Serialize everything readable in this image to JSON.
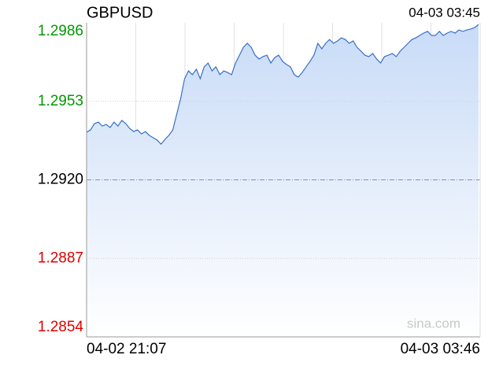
{
  "chart_data": {
    "type": "area",
    "title": "GBPUSD",
    "last_time": "04-03 03:45",
    "watermark": "sina.com",
    "x_labels": [
      "04-02 21:07",
      "04-03 03:46"
    ],
    "color": "#3a6fc4",
    "fill": "#c8dbf7",
    "grid": true,
    "ylim": [
      1.2854,
      1.2986
    ],
    "yticks": [
      {
        "value": 1.2854,
        "label": "1.2854",
        "color": "#e00000"
      },
      {
        "value": 1.2887,
        "label": "1.2887",
        "color": "#e00000"
      },
      {
        "value": 1.292,
        "label": "1.2920",
        "color": "#000000"
      },
      {
        "value": 1.2953,
        "label": "1.2953",
        "color": "#009900"
      },
      {
        "value": 1.2986,
        "label": "1.2986",
        "color": "#009900"
      }
    ],
    "values": [
      1.294,
      1.2941,
      1.29436,
      1.29443,
      1.29426,
      1.29433,
      1.2942,
      1.29443,
      1.29426,
      1.2945,
      1.29436,
      1.29416,
      1.29403,
      1.2941,
      1.29393,
      1.29403,
      1.29387,
      1.29377,
      1.29367,
      1.2935,
      1.2937,
      1.29387,
      1.2941,
      1.29476,
      1.29542,
      1.29625,
      1.29658,
      1.29642,
      1.29665,
      1.29625,
      1.29675,
      1.29691,
      1.29658,
      1.29675,
      1.29642,
      1.29658,
      1.29651,
      1.29642,
      1.29691,
      1.29724,
      1.29757,
      1.29774,
      1.29757,
      1.29724,
      1.29708,
      1.29718,
      1.29724,
      1.29691,
      1.29714,
      1.29724,
      1.29698,
      1.29685,
      1.29675,
      1.29642,
      1.29632,
      1.29651,
      1.29675,
      1.29698,
      1.29724,
      1.29774,
      1.29751,
      1.29774,
      1.2979,
      1.29774,
      1.29784,
      1.29797,
      1.2979,
      1.29774,
      1.29784,
      1.29757,
      1.29741,
      1.29724,
      1.29718,
      1.29731,
      1.29708,
      1.29691,
      1.29718,
      1.29724,
      1.29731,
      1.29718,
      1.29741,
      1.29757,
      1.29774,
      1.2979,
      1.29797,
      1.29807,
      1.29817,
      1.29824,
      1.29807,
      1.29807,
      1.29824,
      1.29807,
      1.29817,
      1.29824,
      1.29817,
      1.2983,
      1.29824,
      1.2983,
      1.29834,
      1.2984,
      1.29853
    ]
  }
}
